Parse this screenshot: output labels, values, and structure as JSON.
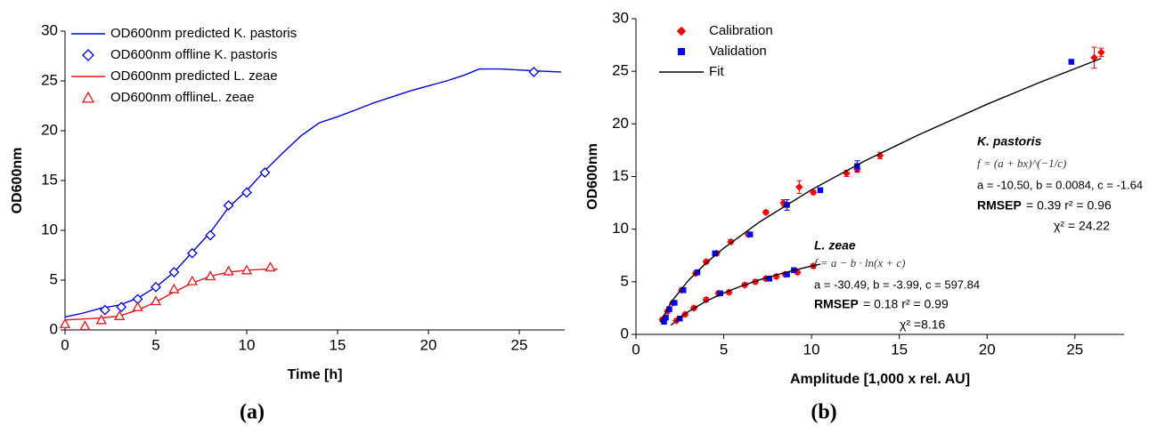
{
  "chart_data": [
    {
      "type": "line",
      "panel_label": "(a)",
      "xlabel": "Time [h]",
      "ylabel": "OD600nm",
      "xlim": [
        0,
        27.5
      ],
      "ylim": [
        0,
        30
      ],
      "xticks": [
        0,
        5,
        10,
        15,
        20,
        25
      ],
      "yticks": [
        0,
        5,
        10,
        15,
        20,
        25,
        30
      ],
      "legend": "top-left",
      "series": [
        {
          "name": "OD600nm predicted K. pastoris",
          "type": "line",
          "color": "#0000e6",
          "x": [
            0,
            1,
            2,
            3,
            4,
            5,
            6,
            7,
            8,
            9,
            10,
            11,
            12,
            13,
            14,
            15,
            16,
            17,
            18,
            19,
            20,
            21,
            22,
            22.8,
            24,
            25,
            26,
            27.3
          ],
          "values": [
            1.3,
            1.7,
            2.2,
            2.5,
            3.2,
            4.3,
            5.8,
            7.8,
            9.8,
            12.3,
            14,
            16,
            17.8,
            19.5,
            20.8,
            21.4,
            22.1,
            22.8,
            23.4,
            24,
            24.5,
            25,
            25.6,
            26.2,
            26.2,
            26.1,
            26,
            25.9
          ]
        },
        {
          "name": "OD600nm offline K. pastoris",
          "type": "scatter",
          "marker": "diamond",
          "filled": false,
          "color": "#0000e6",
          "x": [
            2.2,
            3.1,
            4.0,
            5.0,
            6.0,
            7.0,
            8.0,
            9.0,
            10.0,
            11.0,
            25.8
          ],
          "values": [
            2.0,
            2.3,
            3.1,
            4.3,
            5.8,
            7.7,
            9.5,
            12.5,
            13.8,
            15.8,
            25.9
          ]
        },
        {
          "name": "OD600nm predicted  L. zeae",
          "type": "line",
          "color": "#e8141b",
          "x": [
            0,
            1,
            2,
            3,
            4,
            5,
            6,
            7,
            8,
            9,
            10,
            11,
            11.7
          ],
          "values": [
            1.0,
            1.1,
            1.2,
            1.4,
            2.0,
            2.8,
            3.8,
            4.7,
            5.4,
            5.8,
            6.0,
            6.1,
            6.1
          ]
        },
        {
          "name": "OD600nm offlineL. zeae",
          "type": "scatter",
          "marker": "triangle",
          "filled": false,
          "color": "#e8141b",
          "x": [
            0,
            1.1,
            2.0,
            3.0,
            4.0,
            5.0,
            6.0,
            7.0,
            8.0,
            9.0,
            10.0,
            11.3
          ],
          "values": [
            0.6,
            0.4,
            1.0,
            1.4,
            2.3,
            2.9,
            4.1,
            4.9,
            5.4,
            5.9,
            6.0,
            6.3
          ]
        }
      ]
    },
    {
      "type": "scatter",
      "panel_label": "(b)",
      "xlabel": "Amplitude [1,000 x rel. AU]",
      "ylabel": "OD600nm",
      "xlim": [
        0,
        27.8
      ],
      "ylim": [
        0,
        30
      ],
      "xticks": [
        0,
        5,
        10,
        15,
        20,
        25
      ],
      "yticks": [
        0,
        5,
        10,
        15,
        20,
        25,
        30
      ],
      "legend": "top-left",
      "series": [
        {
          "name": "Calibration",
          "type": "scatter",
          "marker": "diamond",
          "filled": true,
          "color": "#ff0000",
          "x": [
            1.5,
            1.8,
            2.1,
            2.6,
            3.4,
            4.0,
            4.6,
            5.4,
            6.4,
            7.4,
            8.4,
            9.3,
            10.1,
            12.0,
            12.6,
            13.9,
            26.1,
            26.5,
            2.3,
            2.8,
            3.3,
            4.0,
            4.7,
            5.3,
            6.2,
            6.8,
            7.4,
            8.0,
            8.5,
            9.2,
            10.1
          ],
          "values": [
            1.4,
            2.2,
            3.0,
            4.2,
            5.8,
            6.9,
            7.7,
            8.8,
            9.5,
            11.6,
            12.5,
            14.0,
            13.5,
            15.3,
            15.7,
            17.0,
            26.3,
            26.8,
            1.3,
            1.9,
            2.5,
            3.3,
            3.9,
            4.0,
            4.7,
            5.0,
            5.3,
            5.5,
            5.7,
            5.9,
            6.5
          ],
          "errors": [
            0.2,
            0.2,
            0.2,
            0.2,
            0.2,
            0.2,
            0.2,
            0.2,
            0.2,
            0.2,
            0.3,
            0.6,
            0.2,
            0.3,
            0.3,
            0.3,
            1.0,
            0.4,
            0.2,
            0.2,
            0.2,
            0.2,
            0.2,
            0.2,
            0.2,
            0.2,
            0.2,
            0.2,
            0.2,
            0.2,
            0.2
          ]
        },
        {
          "name": "Validation",
          "type": "scatter",
          "marker": "square",
          "filled": true,
          "color": "#0000ff",
          "x": [
            1.6,
            1.7,
            1.9,
            2.2,
            2.7,
            3.5,
            4.5,
            6.5,
            8.6,
            10.5,
            12.6,
            24.8,
            2.5,
            4.8,
            7.6,
            8.6,
            9.0
          ],
          "values": [
            1.2,
            1.6,
            2.4,
            3.0,
            4.2,
            5.9,
            7.7,
            9.5,
            12.3,
            13.7,
            16.0,
            25.9,
            1.5,
            3.9,
            5.3,
            5.7,
            6.1
          ],
          "errors": [
            0.2,
            0.2,
            0.2,
            0.2,
            0.2,
            0.2,
            0.2,
            0.2,
            0.5,
            0.2,
            0.5,
            0.2,
            0.2,
            0.2,
            0.2,
            0.2,
            0.2
          ]
        },
        {
          "name": "Fit",
          "type": "line",
          "color": "#000000",
          "x": [
            1.4,
            2,
            3,
            4,
            5,
            7,
            10,
            13,
            16,
            20,
            23,
            26.5,
            null,
            2,
            2.5,
            3,
            4,
            5,
            6,
            7,
            8,
            9,
            10,
            10.5
          ],
          "values": [
            1.15,
            3.07,
            5.15,
            6.79,
            8.2,
            10.64,
            13.75,
            16.45,
            18.89,
            21.87,
            23.95,
            26.23,
            null,
            0.88,
            1.58,
            2.18,
            3.16,
            3.94,
            4.6,
            5.16,
            5.66,
            6.1,
            6.49,
            6.68
          ]
        }
      ],
      "annotations": [
        "K. pastoris",
        "f = (a + bx)^(−1/c)",
        "a = -10.50, b = 0.0084, c = -1.64",
        "RMSEP",
        "= 0.39  r² = 0.96",
        "χ² = 24.22",
        "L. zeae",
        "f = a − b · ln(x + c)",
        "a = -30.49, b = -3.99, c = 597.84",
        "RMSEP",
        "= 0.18    r² = 0.99",
        "χ² =8.16"
      ]
    }
  ]
}
